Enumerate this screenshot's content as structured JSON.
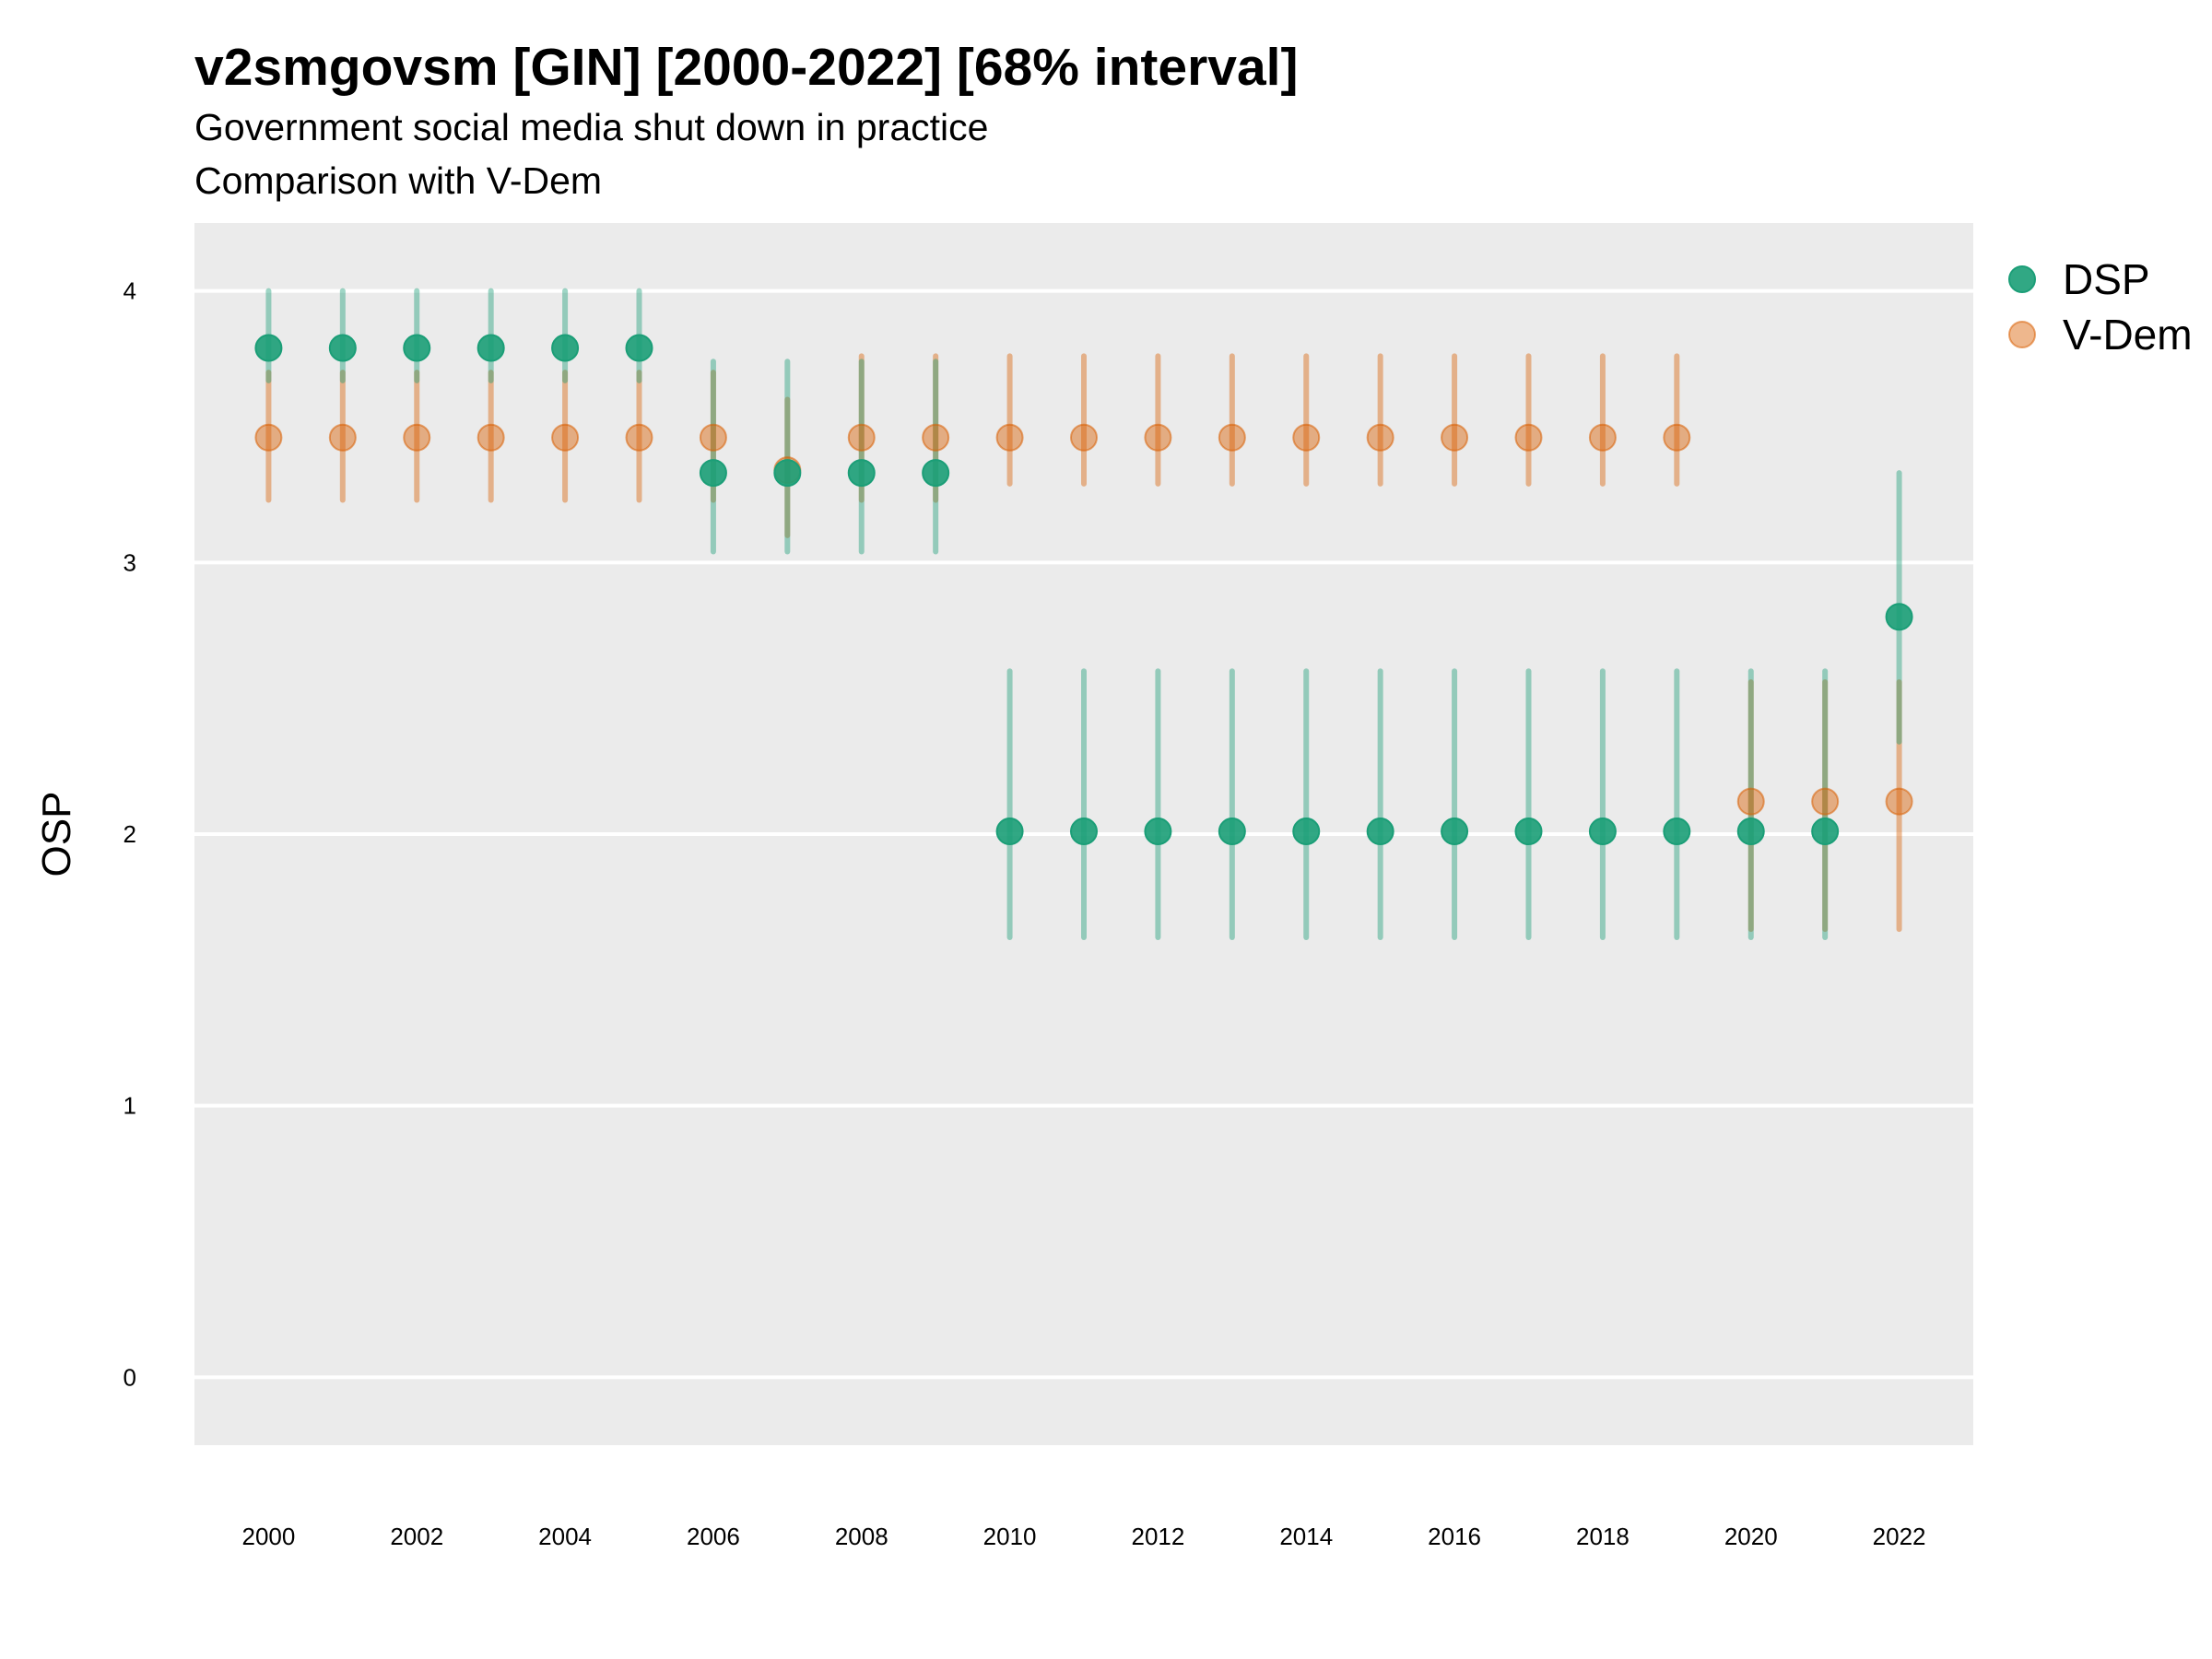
{
  "chart_data": {
    "type": "scatter",
    "title": "v2smgovsm [GIN] [2000-2022] [68% interval]",
    "subtitle": "Government social media shut down in practice",
    "subtitle2": "Comparison with V-Dem",
    "xlabel": "",
    "ylabel": "OSP",
    "xlim": [
      1999.0,
      2023.0
    ],
    "ylim": [
      -0.25,
      4.25
    ],
    "x_ticks": [
      2000,
      2002,
      2004,
      2006,
      2008,
      2010,
      2012,
      2014,
      2016,
      2018,
      2020,
      2022
    ],
    "y_ticks": [
      0,
      1,
      2,
      3,
      4
    ],
    "grid": true,
    "legend_position": "right",
    "series": [
      {
        "name": "DSP",
        "color": "#1b9e77",
        "x": [
          2000,
          2001,
          2002,
          2003,
          2004,
          2005,
          2006,
          2007,
          2008,
          2009,
          2010,
          2011,
          2012,
          2013,
          2014,
          2015,
          2016,
          2017,
          2018,
          2019,
          2020,
          2021,
          2022
        ],
        "y": [
          3.79,
          3.79,
          3.79,
          3.79,
          3.79,
          3.79,
          3.33,
          3.33,
          3.33,
          3.33,
          2.01,
          2.01,
          2.01,
          2.01,
          2.01,
          2.01,
          2.01,
          2.01,
          2.01,
          2.01,
          2.01,
          2.01,
          2.8
        ],
        "lower": [
          3.67,
          3.67,
          3.67,
          3.67,
          3.67,
          3.67,
          3.04,
          3.04,
          3.04,
          3.04,
          1.62,
          1.62,
          1.62,
          1.62,
          1.62,
          1.62,
          1.62,
          1.62,
          1.62,
          1.62,
          1.62,
          1.62,
          2.34
        ],
        "upper": [
          4.0,
          4.0,
          4.0,
          4.0,
          4.0,
          4.0,
          3.74,
          3.74,
          3.74,
          3.74,
          2.6,
          2.6,
          2.6,
          2.6,
          2.6,
          2.6,
          2.6,
          2.6,
          2.6,
          2.6,
          2.6,
          2.6,
          3.33
        ]
      },
      {
        "name": "V-Dem",
        "color": "#d95f02",
        "x": [
          2000,
          2001,
          2002,
          2003,
          2004,
          2005,
          2006,
          2007,
          2008,
          2009,
          2010,
          2011,
          2012,
          2013,
          2014,
          2015,
          2016,
          2017,
          2018,
          2019,
          2020,
          2021,
          2022
        ],
        "y": [
          3.46,
          3.46,
          3.46,
          3.46,
          3.46,
          3.46,
          3.46,
          3.34,
          3.46,
          3.46,
          3.46,
          3.46,
          3.46,
          3.46,
          3.46,
          3.46,
          3.46,
          3.46,
          3.46,
          3.46,
          2.12,
          2.12,
          2.12
        ],
        "lower": [
          3.23,
          3.23,
          3.23,
          3.23,
          3.23,
          3.23,
          3.23,
          3.1,
          3.23,
          3.23,
          3.29,
          3.29,
          3.29,
          3.29,
          3.29,
          3.29,
          3.29,
          3.29,
          3.29,
          3.29,
          1.65,
          1.65,
          1.65
        ],
        "upper": [
          3.7,
          3.7,
          3.7,
          3.7,
          3.7,
          3.7,
          3.7,
          3.6,
          3.76,
          3.76,
          3.76,
          3.76,
          3.76,
          3.76,
          3.76,
          3.76,
          3.76,
          3.76,
          3.76,
          3.76,
          2.56,
          2.56,
          2.56
        ]
      }
    ]
  }
}
